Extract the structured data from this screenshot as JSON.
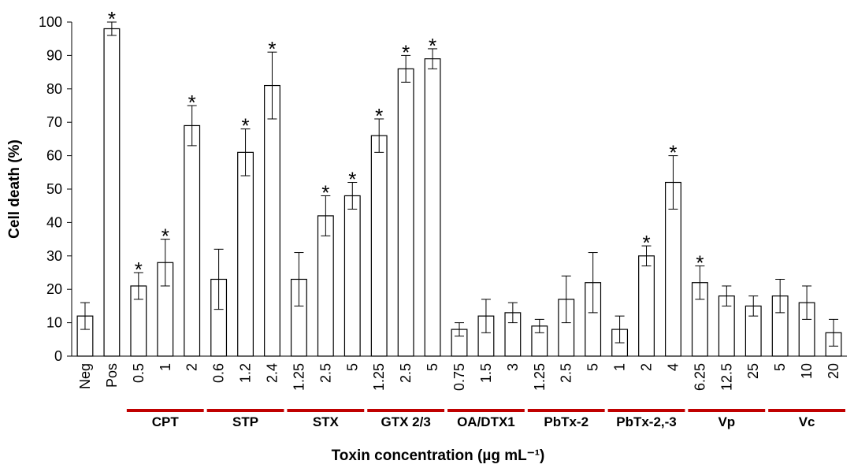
{
  "chart_data": {
    "type": "bar",
    "xlabel": "Toxin concentration (µg  mL⁻¹)",
    "ylabel": "Cell death (%)",
    "ylim": [
      0,
      100
    ],
    "yticks": [
      0,
      10,
      20,
      30,
      40,
      50,
      60,
      70,
      80,
      90,
      100
    ],
    "grid": false,
    "legend": "none",
    "bar_fill": "#ffffff",
    "bar_stroke": "#000000",
    "group_line_color": "#c00000",
    "bars": [
      {
        "label": "Neg",
        "value": 12,
        "err": 4,
        "sig": false
      },
      {
        "label": "Pos",
        "value": 98,
        "err": 2,
        "sig": true
      },
      {
        "label": "0.5",
        "value": 21,
        "err": 4,
        "sig": true
      },
      {
        "label": "1",
        "value": 28,
        "err": 7,
        "sig": true
      },
      {
        "label": "2",
        "value": 69,
        "err": 6,
        "sig": true
      },
      {
        "label": "0.6",
        "value": 23,
        "err": 9,
        "sig": false
      },
      {
        "label": "1.2",
        "value": 61,
        "err": 7,
        "sig": true
      },
      {
        "label": "2.4",
        "value": 81,
        "err": 10,
        "sig": true
      },
      {
        "label": "1.25",
        "value": 23,
        "err": 8,
        "sig": false
      },
      {
        "label": "2.5",
        "value": 42,
        "err": 6,
        "sig": true
      },
      {
        "label": "5",
        "value": 48,
        "err": 4,
        "sig": true
      },
      {
        "label": "1.25",
        "value": 66,
        "err": 5,
        "sig": true
      },
      {
        "label": "2.5",
        "value": 86,
        "err": 4,
        "sig": true
      },
      {
        "label": "5",
        "value": 89,
        "err": 3,
        "sig": true
      },
      {
        "label": "0.75",
        "value": 8,
        "err": 2,
        "sig": false
      },
      {
        "label": "1.5",
        "value": 12,
        "err": 5,
        "sig": false
      },
      {
        "label": "3",
        "value": 13,
        "err": 3,
        "sig": false
      },
      {
        "label": "1.25",
        "value": 9,
        "err": 2,
        "sig": false
      },
      {
        "label": "2.5",
        "value": 17,
        "err": 7,
        "sig": false
      },
      {
        "label": "5",
        "value": 22,
        "err": 9,
        "sig": false
      },
      {
        "label": "1",
        "value": 8,
        "err": 4,
        "sig": false
      },
      {
        "label": "2",
        "value": 30,
        "err": 3,
        "sig": true
      },
      {
        "label": "4",
        "value": 52,
        "err": 8,
        "sig": true
      },
      {
        "label": "6.25",
        "value": 22,
        "err": 5,
        "sig": true
      },
      {
        "label": "12.5",
        "value": 18,
        "err": 3,
        "sig": false
      },
      {
        "label": "25",
        "value": 15,
        "err": 3,
        "sig": false
      },
      {
        "label": "5",
        "value": 18,
        "err": 5,
        "sig": false
      },
      {
        "label": "10",
        "value": 16,
        "err": 5,
        "sig": false
      },
      {
        "label": "20",
        "value": 7,
        "err": 4,
        "sig": false
      }
    ],
    "groups": [
      {
        "name": "CPT",
        "first": 2,
        "last": 4
      },
      {
        "name": "STP",
        "first": 5,
        "last": 7
      },
      {
        "name": "STX",
        "first": 8,
        "last": 10
      },
      {
        "name": "GTX 2/3",
        "first": 11,
        "last": 13
      },
      {
        "name": "OA/DTX1",
        "first": 14,
        "last": 16
      },
      {
        "name": "PbTx-2",
        "first": 17,
        "last": 19
      },
      {
        "name": "PbTx-2,-3",
        "first": 20,
        "last": 22
      },
      {
        "name": "Vp",
        "first": 23,
        "last": 25
      },
      {
        "name": "Vc",
        "first": 26,
        "last": 28
      }
    ],
    "significance_marker": "*"
  }
}
